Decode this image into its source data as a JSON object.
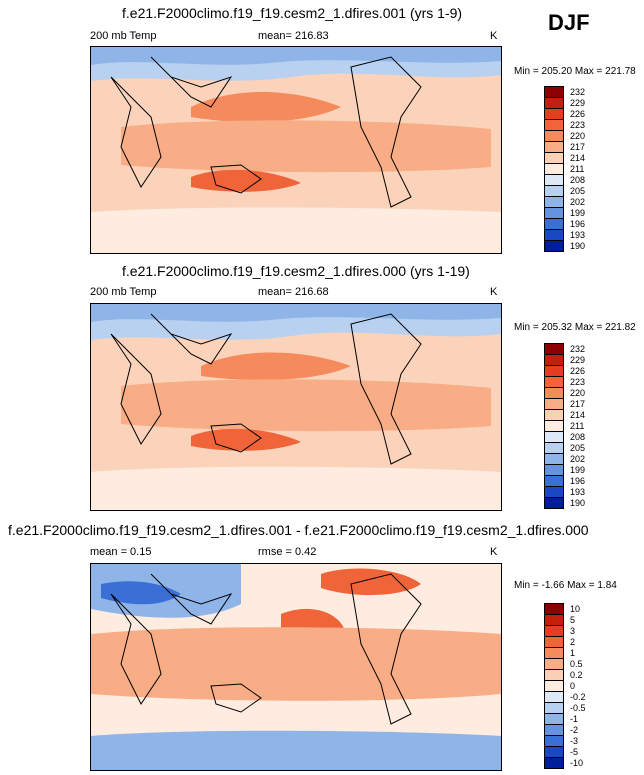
{
  "season": "DJF",
  "panels": [
    {
      "title": "f.e21.F2000climo.f19_f19.cesm2_1.dfires.001 (yrs 1-9)",
      "variable": "200 mb Temp",
      "stat_text": "mean= 216.83",
      "stat2_text": "",
      "units": "K",
      "range_text": "Min = 205.20 Max = 221.78"
    },
    {
      "title": "f.e21.F2000climo.f19_f19.cesm2_1.dfires.000 (yrs 1-19)",
      "variable": "200 mb Temp",
      "stat_text": "mean= 216.68",
      "stat2_text": "",
      "units": "K",
      "range_text": "Min = 205.32 Max = 221.82"
    },
    {
      "title": "f.e21.F2000climo.f19_f19.cesm2_1.dfires.001 - f.e21.F2000climo.f19_f19.cesm2_1.dfires.000",
      "variable": "mean =   0.15",
      "stat_text": "rmse =   0.42",
      "stat2_text": "",
      "units": "K",
      "range_text": "Min =  -1.66 Max =   1.84"
    }
  ],
  "chart_data": [
    {
      "type": "heatmap",
      "title": "f.e21.F2000climo.f19_f19.cesm2_1.dfires.001 (yrs 1-9)",
      "variable": "200 mb Temp",
      "units": "K",
      "mean": 216.83,
      "min": 205.2,
      "max": 221.78,
      "colorbar_levels": [
        "232",
        "229",
        "226",
        "223",
        "220",
        "217",
        "214",
        "211",
        "208",
        "205",
        "202",
        "199",
        "196",
        "193",
        "190"
      ],
      "colorbar_colors": [
        "#8b0000",
        "#c21f0d",
        "#e33e1e",
        "#f0643a",
        "#f58a5c",
        "#f9ad86",
        "#fbd0b4",
        "#fdecdf",
        "#dde9f7",
        "#b9d1f0",
        "#8fb4e8",
        "#6493df",
        "#3a6fd6",
        "#1a48c2",
        "#001e9a"
      ]
    },
    {
      "type": "heatmap",
      "title": "f.e21.F2000climo.f19_f19.cesm2_1.dfires.000 (yrs 1-19)",
      "variable": "200 mb Temp",
      "units": "K",
      "mean": 216.68,
      "min": 205.32,
      "max": 221.82,
      "colorbar_levels": [
        "232",
        "229",
        "226",
        "223",
        "220",
        "217",
        "214",
        "211",
        "208",
        "205",
        "202",
        "199",
        "196",
        "193",
        "190"
      ],
      "colorbar_colors": [
        "#8b0000",
        "#c21f0d",
        "#e33e1e",
        "#f0643a",
        "#f58a5c",
        "#f9ad86",
        "#fbd0b4",
        "#fdecdf",
        "#dde9f7",
        "#b9d1f0",
        "#8fb4e8",
        "#6493df",
        "#3a6fd6",
        "#1a48c2",
        "#001e9a"
      ]
    },
    {
      "type": "heatmap",
      "title": "f.e21.F2000climo.f19_f19.cesm2_1.dfires.001 - f.e21.F2000climo.f19_f19.cesm2_1.dfires.000",
      "units": "K",
      "mean": 0.15,
      "rmse": 0.42,
      "min": -1.66,
      "max": 1.84,
      "colorbar_levels": [
        "10",
        "5",
        "3",
        "2",
        "1",
        "0.5",
        "0.2",
        "0",
        "-0.2",
        "-0.5",
        "-1",
        "-2",
        "-3",
        "-5",
        "-10"
      ],
      "colorbar_colors": [
        "#8b0000",
        "#c21f0d",
        "#e33e1e",
        "#f0643a",
        "#f58a5c",
        "#f9ad86",
        "#fbd0b4",
        "#fdecdf",
        "#dde9f7",
        "#b9d1f0",
        "#8fb4e8",
        "#6493df",
        "#3a6fd6",
        "#1a48c2",
        "#001e9a"
      ]
    }
  ]
}
